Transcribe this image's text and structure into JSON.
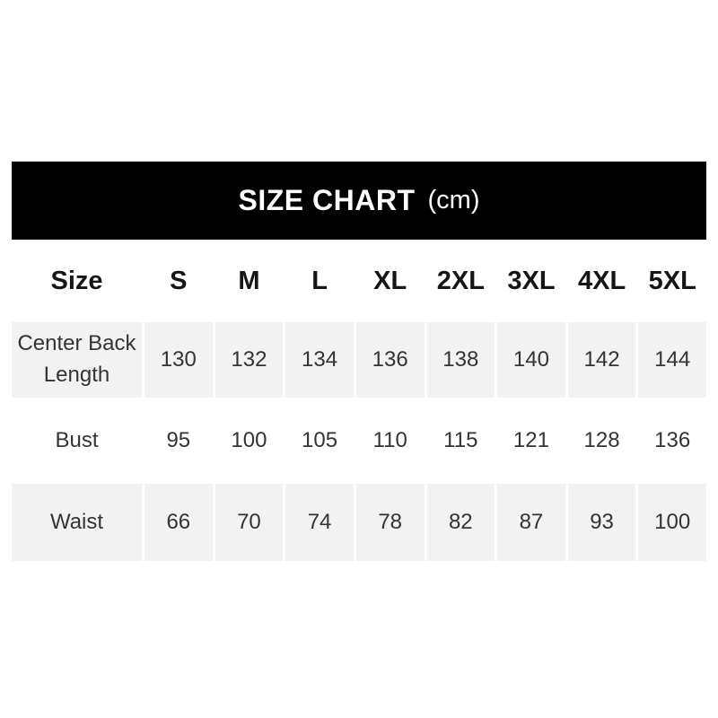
{
  "banner": {
    "title": "SIZE CHART",
    "unit": "(cm)"
  },
  "chart_data": {
    "type": "table",
    "title": "SIZE CHART (cm)",
    "unit": "cm",
    "columns": [
      "Size",
      "S",
      "M",
      "L",
      "XL",
      "2XL",
      "3XL",
      "4XL",
      "5XL"
    ],
    "rows": [
      {
        "label": "Center Back Length",
        "values": [
          130,
          132,
          134,
          136,
          138,
          140,
          142,
          144
        ]
      },
      {
        "label": "Bust",
        "values": [
          95,
          100,
          105,
          110,
          115,
          121,
          128,
          136
        ]
      },
      {
        "label": "Waist",
        "values": [
          66,
          70,
          74,
          78,
          82,
          87,
          93,
          100
        ]
      }
    ]
  },
  "colors": {
    "banner_bg": "#000000",
    "banner_text": "#ffffff",
    "stripe_bg": "#f2f2f2",
    "header_text": "#151515",
    "body_text": "#333333",
    "page_bg": "#ffffff"
  }
}
